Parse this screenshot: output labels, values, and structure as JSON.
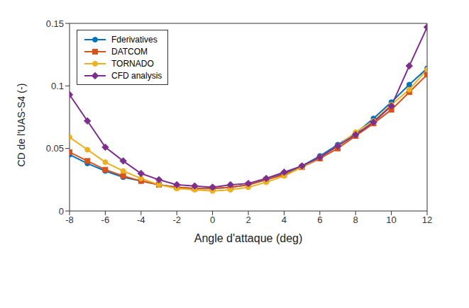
{
  "chart_data": {
    "type": "line",
    "x_label": "Angle d'attaque (deg)",
    "y_label": "CD de l'UAS-S4 (-)",
    "x": [
      -8,
      -7,
      -6,
      -5,
      -4,
      -3,
      -2,
      -1,
      0,
      1,
      2,
      3,
      4,
      5,
      6,
      7,
      8,
      9,
      10,
      11,
      12
    ],
    "xlim": [
      -8,
      12
    ],
    "xticks": [
      -8,
      -6,
      -4,
      -2,
      0,
      2,
      4,
      6,
      8,
      10,
      12
    ],
    "ylim": [
      0,
      0.15
    ],
    "yticks": [
      0,
      0.05,
      0.1,
      0.15
    ],
    "grid": false,
    "legend": "top-left",
    "series": [
      {
        "name": "Fderivatives",
        "color": "#0072BD",
        "marker": "circle",
        "values": [
          0.045,
          0.038,
          0.032,
          0.027,
          0.024,
          0.021,
          0.019,
          0.018,
          0.018,
          0.019,
          0.021,
          0.025,
          0.03,
          0.036,
          0.044,
          0.053,
          0.062,
          0.074,
          0.087,
          0.101,
          0.114
        ]
      },
      {
        "name": "DATCOM",
        "color": "#D95319",
        "marker": "square",
        "values": [
          0.047,
          0.04,
          0.033,
          0.028,
          0.024,
          0.021,
          0.019,
          0.018,
          0.018,
          0.019,
          0.021,
          0.025,
          0.029,
          0.035,
          0.042,
          0.05,
          0.06,
          0.07,
          0.081,
          0.095,
          0.109
        ]
      },
      {
        "name": "TORNADO",
        "color": "#EDB120",
        "marker": "circle",
        "values": [
          0.059,
          0.049,
          0.039,
          0.032,
          0.026,
          0.021,
          0.018,
          0.017,
          0.016,
          0.017,
          0.019,
          0.023,
          0.028,
          0.035,
          0.043,
          0.052,
          0.063,
          0.072,
          0.085,
          0.097,
          0.113
        ]
      },
      {
        "name": "CFD analysis",
        "color": "#7E2F8E",
        "marker": "diamond",
        "values": [
          0.093,
          0.072,
          0.051,
          0.04,
          0.03,
          0.025,
          0.021,
          0.02,
          0.019,
          0.021,
          0.022,
          0.026,
          0.031,
          0.036,
          0.043,
          0.052,
          0.061,
          0.071,
          0.084,
          0.116,
          0.147
        ]
      }
    ]
  }
}
